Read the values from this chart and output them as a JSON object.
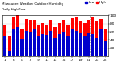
{
  "title": "Milwaukee Weather Outdoor Humidity",
  "subtitle": "Daily High/Low",
  "high_values": [
    78,
    50,
    97,
    100,
    65,
    90,
    88,
    88,
    75,
    82,
    78,
    88,
    72,
    82,
    88,
    78,
    92,
    95,
    85,
    82,
    88,
    95,
    85,
    90,
    68
  ],
  "low_values": [
    48,
    15,
    68,
    72,
    42,
    62,
    60,
    65,
    48,
    55,
    52,
    62,
    45,
    55,
    60,
    48,
    68,
    62,
    58,
    48,
    58,
    55,
    45,
    65,
    38
  ],
  "high_color": "#ff0000",
  "low_color": "#0000cc",
  "background_color": "#ffffff",
  "ylim": [
    0,
    100
  ],
  "yticks": [
    20,
    40,
    60,
    80,
    100
  ],
  "grid_color": "#c8c8c8",
  "dotted_line_x": [
    18.5,
    19.5,
    20.5
  ],
  "legend_high": "High",
  "legend_low": "Low",
  "bar_width": 0.8
}
